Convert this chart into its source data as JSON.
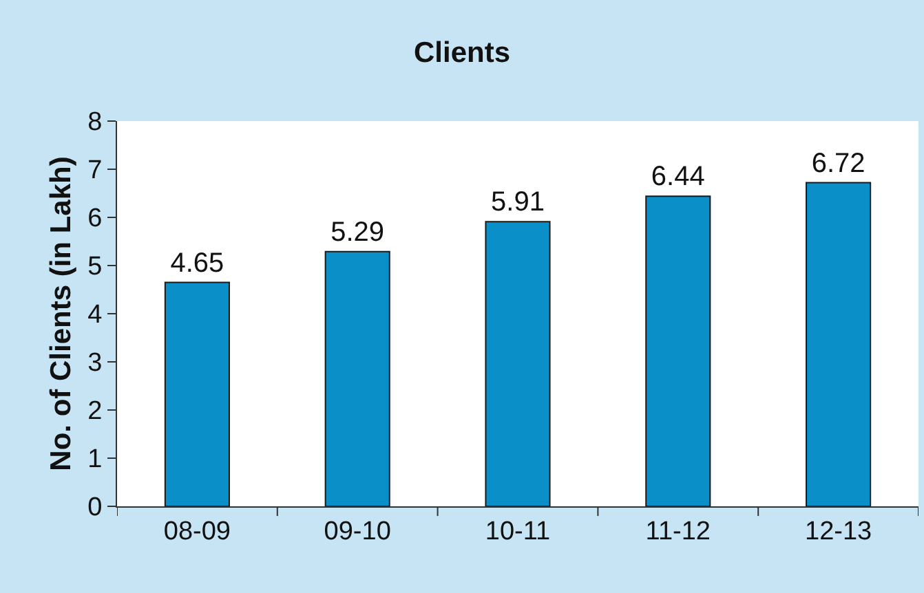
{
  "chart_data": {
    "type": "bar",
    "title": "Clients",
    "ylabel": "No. of Clients (in Lakh)",
    "categories": [
      "08-09",
      "09-10",
      "10-11",
      "11-12",
      "12-13"
    ],
    "values": [
      4.65,
      5.29,
      5.91,
      6.44,
      6.72
    ],
    "color": "#0a8fc8",
    "ylim": [
      0,
      8
    ],
    "yticks": [
      0,
      1,
      2,
      3,
      4,
      5,
      6,
      7,
      8
    ],
    "grid": false,
    "data_labels": true,
    "legend": false
  }
}
